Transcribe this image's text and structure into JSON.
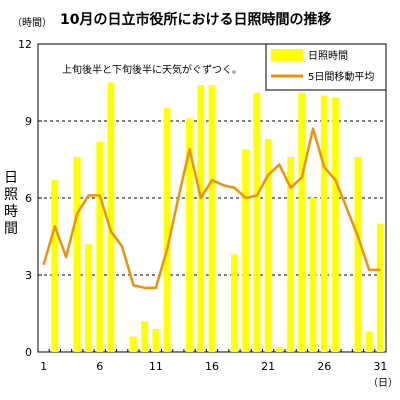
{
  "chart_data": {
    "type": "bar+line",
    "title": "10月の日立市役所における日照時間の推移",
    "y_unit_label": "（時間）",
    "x_unit_label": "（日）",
    "ylabel": "日照時間",
    "annotation": "上旬後半と下旬後半に天気がぐずつく。",
    "ylim": [
      0,
      12
    ],
    "yticks": [
      0,
      3,
      6,
      9,
      12
    ],
    "xticks": [
      1,
      6,
      11,
      16,
      21,
      26,
      31
    ],
    "grid": "dashed horizontal at 3, 6, 9",
    "legend_position": "top-right",
    "x": [
      1,
      2,
      3,
      4,
      5,
      6,
      7,
      8,
      9,
      10,
      11,
      12,
      13,
      14,
      15,
      16,
      17,
      18,
      19,
      20,
      21,
      22,
      23,
      24,
      25,
      26,
      27,
      28,
      29,
      30,
      31
    ],
    "series": [
      {
        "name": "日照時間",
        "kind": "bar",
        "color": "#ffff00",
        "values": [
          0.0,
          6.7,
          0.0,
          7.6,
          4.2,
          8.2,
          10.5,
          0.0,
          0.6,
          1.2,
          0.9,
          9.5,
          0.0,
          9.1,
          10.4,
          10.4,
          0.0,
          3.8,
          7.9,
          10.1,
          8.3,
          0.2,
          7.6,
          10.1,
          6.0,
          10.0,
          9.9,
          0.0,
          7.6,
          0.8,
          5.0
        ]
      },
      {
        "name": "5日間移動平均",
        "kind": "line",
        "color": "#f0900a",
        "values": [
          3.4,
          4.9,
          3.7,
          5.4,
          6.1,
          6.1,
          4.7,
          4.1,
          2.6,
          2.5,
          2.5,
          4.0,
          6.0,
          7.9,
          6.0,
          6.7,
          6.5,
          6.4,
          6.0,
          6.1,
          6.9,
          7.3,
          6.4,
          6.8,
          8.7,
          7.2,
          6.7,
          5.6,
          4.5,
          3.2,
          3.2
        ]
      }
    ]
  }
}
